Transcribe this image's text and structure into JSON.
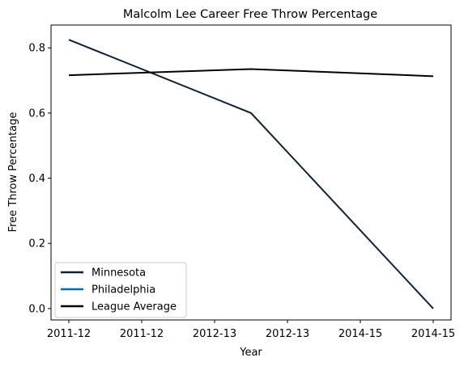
{
  "chart_data": {
    "type": "line",
    "title": "Malcolm Lee  Career Free Throw Percentage",
    "xlabel": "Year",
    "ylabel": "Free Throw Percentage",
    "x_tick_labels": [
      "2011-12",
      "2011-12",
      "2012-13",
      "2012-13",
      "2014-15",
      "2014-15"
    ],
    "x_range": [
      0,
      5
    ],
    "ylim": [
      -0.035,
      0.87
    ],
    "y_ticks": [
      0.0,
      0.2,
      0.4,
      0.6,
      0.8
    ],
    "y_tick_labels": [
      "0.0",
      "0.2",
      "0.4",
      "0.6",
      "0.8"
    ],
    "grid": false,
    "legend_position": "lower-left",
    "series": [
      {
        "name": "Minnesota",
        "color": "#0c2340",
        "x": [
          0,
          2.5,
          5
        ],
        "values": [
          0.825,
          0.6,
          0.0
        ]
      },
      {
        "name": "Philadelphia",
        "color": "#006bb6",
        "x": [],
        "values": []
      },
      {
        "name": "League Average",
        "color": "#000000",
        "x": [
          0,
          2.5,
          5
        ],
        "values": [
          0.716,
          0.735,
          0.713
        ]
      }
    ]
  }
}
